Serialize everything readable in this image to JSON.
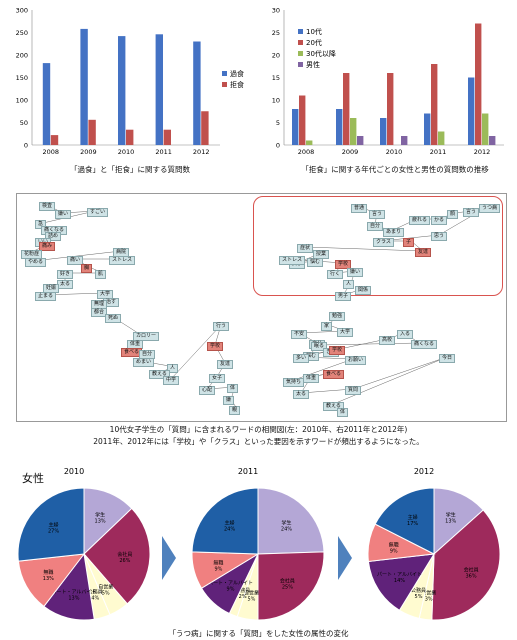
{
  "colors": {
    "blue": "#4472c4",
    "red": "#c0504d",
    "green": "#9bbb59",
    "purple": "#8064a2",
    "pie_student": "#b4a7d6",
    "pie_office": "#9e2a5c",
    "pie_parttime": "#60227a",
    "pie_self": "#fffbd0",
    "pie_unemployed": "#f08080",
    "pie_housewife": "#1f5fa6",
    "net_node": "#cfe3e6",
    "net_hot": "#e2837a",
    "highlight": "#d9534f",
    "arrow": "#4f81bd"
  },
  "chart_data": [
    {
      "type": "bar",
      "categories": [
        "2008",
        "2009",
        "2010",
        "2011",
        "2012"
      ],
      "series": [
        {
          "name": "過食",
          "values": [
            182,
            258,
            242,
            246,
            230
          ]
        },
        {
          "name": "拒食",
          "values": [
            22,
            56,
            34,
            34,
            75
          ]
        }
      ],
      "ylim": [
        0,
        300
      ],
      "yticks": [
        "0",
        "50",
        "100",
        "150",
        "200",
        "250",
        "300"
      ],
      "legend": "right",
      "caption": "「過食」と「拒食」に関する質問数"
    },
    {
      "type": "bar",
      "categories": [
        "2008",
        "2009",
        "2010",
        "2011",
        "2012"
      ],
      "series": [
        {
          "name": "10代",
          "values": [
            8,
            8,
            6,
            7,
            15
          ]
        },
        {
          "name": "20代",
          "values": [
            11,
            16,
            16,
            18,
            27
          ]
        },
        {
          "name": "30代以降",
          "values": [
            1,
            6,
            0,
            3,
            7
          ]
        },
        {
          "name": "男性",
          "values": [
            0,
            2,
            2,
            0,
            2
          ]
        }
      ],
      "ylim": [
        0,
        30
      ],
      "yticks": [
        "0",
        "5",
        "10",
        "15",
        "20",
        "25",
        "30"
      ],
      "legend": "top-left",
      "caption": "「拒食」に関する年代ごとの女性と男性の質問数の推移"
    },
    {
      "type": "pie",
      "title": "2010",
      "slices": [
        {
          "label": "学生",
          "pct": "13%",
          "value": 13
        },
        {
          "label": "会社員",
          "pct": "26%",
          "value": 26
        },
        {
          "label": "自営業",
          "pct": "5%",
          "value": 5
        },
        {
          "label": "公務員",
          "pct": "4%",
          "value": 4
        },
        {
          "label": "パート・アルバイト",
          "pct": "13%",
          "value": 13
        },
        {
          "label": "無職",
          "pct": "13%",
          "value": 13
        },
        {
          "label": "主婦",
          "pct": "27%",
          "value": 27
        }
      ]
    },
    {
      "type": "pie",
      "title": "2011",
      "slices": [
        {
          "label": "学生",
          "pct": "24%",
          "value": 24
        },
        {
          "label": "会社員",
          "pct": "25%",
          "value": 25
        },
        {
          "label": "自営業",
          "pct": "5%",
          "value": 5
        },
        {
          "label": "公務員",
          "pct": "2%",
          "value": 2
        },
        {
          "label": "パート・アルバイト",
          "pct": "9%",
          "value": 9
        },
        {
          "label": "無職",
          "pct": "9%",
          "value": 9
        },
        {
          "label": "主婦",
          "pct": "24%",
          "value": 24
        }
      ]
    },
    {
      "type": "pie",
      "title": "2012",
      "slices": [
        {
          "label": "学生",
          "pct": "13%",
          "value": 13
        },
        {
          "label": "会社員",
          "pct": "36%",
          "value": 36
        },
        {
          "label": "自営業",
          "pct": "3%",
          "value": 3
        },
        {
          "label": "公務員",
          "pct": "5%",
          "value": 5
        },
        {
          "label": "パート・アルバイト",
          "pct": "14%",
          "value": 14
        },
        {
          "label": "無職",
          "pct": "9%",
          "value": 9
        },
        {
          "label": "主婦",
          "pct": "17%",
          "value": 17
        }
      ]
    }
  ],
  "network": {
    "caption_line1": "10代女子学生の「質問」に含まれるワードの相関図(左：2010年、右2011年と2012年)",
    "caption_line2": "2011年、2012年には「学校」や「クラス」といった要因を示すワードが頻出するようになった。",
    "left_words": [
      {
        "t": "検査",
        "h": false
      },
      {
        "t": "嫌い",
        "h": false
      },
      {
        "t": "すごい",
        "h": false
      },
      {
        "t": "急",
        "h": false
      },
      {
        "t": "痛くなる",
        "h": false
      },
      {
        "t": "詰め",
        "h": false
      },
      {
        "t": "いい",
        "h": false
      },
      {
        "t": "痛み",
        "h": true
      },
      {
        "t": "花粉症",
        "h": false
      },
      {
        "t": "やめる",
        "h": false
      },
      {
        "t": "病院",
        "h": false
      },
      {
        "t": "ストレス",
        "h": false
      },
      {
        "t": "痛い",
        "h": false
      },
      {
        "t": "胸",
        "h": true
      },
      {
        "t": "肌",
        "h": false
      },
      {
        "t": "好き",
        "h": false
      },
      {
        "t": "太る",
        "h": false
      },
      {
        "t": "妊娠",
        "h": false
      },
      {
        "t": "止まる",
        "h": false
      },
      {
        "t": "大学",
        "h": false
      },
      {
        "t": "治す",
        "h": false
      },
      {
        "t": "無理",
        "h": false
      },
      {
        "t": "都合",
        "h": false
      },
      {
        "t": "死ぬ",
        "h": false
      },
      {
        "t": "カロリー",
        "h": false
      },
      {
        "t": "体重",
        "h": false
      },
      {
        "t": "食べる",
        "h": true
      },
      {
        "t": "自分",
        "h": false
      },
      {
        "t": "めまい",
        "h": false
      },
      {
        "t": "人",
        "h": false
      },
      {
        "t": "教える",
        "h": false
      },
      {
        "t": "中学",
        "h": false
      },
      {
        "t": "行う",
        "h": false
      },
      {
        "t": "学校",
        "h": true
      },
      {
        "t": "友達",
        "h": false
      },
      {
        "t": "女子",
        "h": false
      },
      {
        "t": "心配",
        "h": false
      },
      {
        "t": "体",
        "h": false
      },
      {
        "t": "嫌",
        "h": false
      },
      {
        "t": "親",
        "h": false
      }
    ],
    "right_upper_words": [
      {
        "t": "普通",
        "h": false
      },
      {
        "t": "言う",
        "h": false
      },
      {
        "t": "自分",
        "h": false
      },
      {
        "t": "あまり",
        "h": false
      },
      {
        "t": "疲れる",
        "h": false
      },
      {
        "t": "かる",
        "h": false
      },
      {
        "t": "顔",
        "h": false
      },
      {
        "t": "言う",
        "h": false
      },
      {
        "t": "うつ病",
        "h": false
      },
      {
        "t": "思う",
        "h": false
      },
      {
        "t": "クラス",
        "h": false
      },
      {
        "t": "子",
        "h": true
      },
      {
        "t": "友達",
        "h": true
      },
      {
        "t": "症状",
        "h": false
      },
      {
        "t": "授業",
        "h": false
      },
      {
        "t": "女子",
        "h": false
      },
      {
        "t": "悩む",
        "h": false
      },
      {
        "t": "ストレス",
        "h": false
      },
      {
        "t": "学校",
        "h": true
      },
      {
        "t": "行く",
        "h": false
      },
      {
        "t": "嫌い",
        "h": false
      },
      {
        "t": "人",
        "h": false
      },
      {
        "t": "男子",
        "h": false
      },
      {
        "t": "関係",
        "h": false
      }
    ],
    "right_lower_words": [
      {
        "t": "勉強",
        "h": false
      },
      {
        "t": "家",
        "h": false
      },
      {
        "t": "大学",
        "h": false
      },
      {
        "t": "不安",
        "h": false
      },
      {
        "t": "自分",
        "h": false
      },
      {
        "t": "悩む",
        "h": false
      },
      {
        "t": "高校",
        "h": false
      },
      {
        "t": "入る",
        "h": false
      },
      {
        "t": "痛くなる",
        "h": false
      },
      {
        "t": "眠る",
        "h": false
      },
      {
        "t": "きる",
        "h": false
      },
      {
        "t": "学校",
        "h": true
      },
      {
        "t": "多い",
        "h": false
      },
      {
        "t": "お願い",
        "h": false
      },
      {
        "t": "気持ち",
        "h": false
      },
      {
        "t": "食べる",
        "h": true
      },
      {
        "t": "体重",
        "h": false
      },
      {
        "t": "太る",
        "h": false
      },
      {
        "t": "質問",
        "h": false
      },
      {
        "t": "今日",
        "h": false
      },
      {
        "t": "教える",
        "h": false
      },
      {
        "t": "体",
        "h": false
      }
    ]
  },
  "pies_section": {
    "gender_label": "女性",
    "caption": "「うつ病」に関する「質問」をした女性の属性の変化"
  }
}
